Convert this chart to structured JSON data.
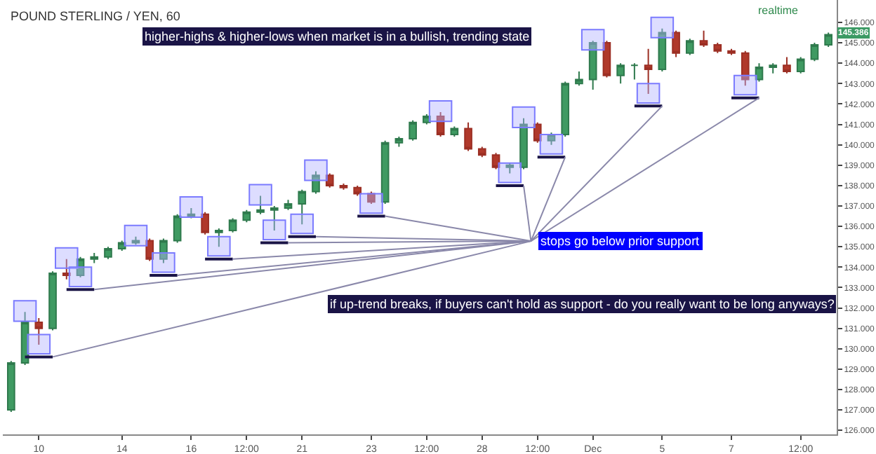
{
  "chart_data": {
    "type": "candlestick",
    "title": "POUND STERLING / YEN, 60",
    "categories": [
      null,
      null,
      "10",
      null,
      null,
      null,
      null,
      null,
      "14",
      null,
      null,
      null,
      null,
      "16",
      null,
      null,
      null,
      "12:00",
      null,
      null,
      null,
      "21",
      null,
      null,
      null,
      null,
      "23",
      null,
      null,
      null,
      "12:00",
      null,
      null,
      null,
      "28",
      null,
      null,
      null,
      "12:00",
      null,
      null,
      null,
      "Dec",
      null,
      null,
      null,
      null,
      "5",
      null,
      null,
      null,
      null,
      "7",
      null,
      null,
      null,
      null,
      "12:00",
      null,
      null
    ],
    "ohlc": [
      [
        127.0,
        129.4,
        126.9,
        129.3
      ],
      [
        129.3,
        131.8,
        129.2,
        131.3
      ],
      [
        131.3,
        131.5,
        130.2,
        131.0
      ],
      [
        131.0,
        133.8,
        130.9,
        133.7
      ],
      [
        133.7,
        134.4,
        133.4,
        133.6
      ],
      [
        133.6,
        134.5,
        133.5,
        134.4
      ],
      [
        134.4,
        134.7,
        134.2,
        134.5
      ],
      [
        134.5,
        135.0,
        134.4,
        134.9
      ],
      [
        134.9,
        135.3,
        134.8,
        135.2
      ],
      [
        135.2,
        135.5,
        135.1,
        135.3
      ],
      [
        135.3,
        135.4,
        134.3,
        134.4
      ],
      [
        134.4,
        135.4,
        134.2,
        135.3
      ],
      [
        135.3,
        136.6,
        135.2,
        136.5
      ],
      [
        136.5,
        136.9,
        136.4,
        136.6
      ],
      [
        136.6,
        136.7,
        135.6,
        135.7
      ],
      [
        135.7,
        135.9,
        135.0,
        135.8
      ],
      [
        135.8,
        136.4,
        135.7,
        136.3
      ],
      [
        136.3,
        136.8,
        136.2,
        136.7
      ],
      [
        136.7,
        137.5,
        136.6,
        136.8
      ],
      [
        136.8,
        137.0,
        135.8,
        136.9
      ],
      [
        136.9,
        137.3,
        136.8,
        137.1
      ],
      [
        137.1,
        137.8,
        136.1,
        137.7
      ],
      [
        137.7,
        138.7,
        137.6,
        138.5
      ],
      [
        138.5,
        138.6,
        137.9,
        138.0
      ],
      [
        138.0,
        138.1,
        137.8,
        137.9
      ],
      [
        137.9,
        138.0,
        137.5,
        137.6
      ],
      [
        137.6,
        137.7,
        137.1,
        137.2
      ],
      [
        137.2,
        140.2,
        137.1,
        140.1
      ],
      [
        140.1,
        140.4,
        139.9,
        140.3
      ],
      [
        140.3,
        141.2,
        140.2,
        141.1
      ],
      [
        141.1,
        141.5,
        141.0,
        141.4
      ],
      [
        141.4,
        141.6,
        140.4,
        140.5
      ],
      [
        140.5,
        140.9,
        140.4,
        140.8
      ],
      [
        140.8,
        141.1,
        139.7,
        139.8
      ],
      [
        139.8,
        139.9,
        139.4,
        139.5
      ],
      [
        139.5,
        139.6,
        138.8,
        138.9
      ],
      [
        138.9,
        139.1,
        138.6,
        139.0
      ],
      [
        138.9,
        141.3,
        138.8,
        141.0
      ],
      [
        141.0,
        141.1,
        140.1,
        140.2
      ],
      [
        140.2,
        140.6,
        140.0,
        140.5
      ],
      [
        140.5,
        143.1,
        140.4,
        143.0
      ],
      [
        143.0,
        143.6,
        142.9,
        143.2
      ],
      [
        143.2,
        145.1,
        142.7,
        145.0
      ],
      [
        145.0,
        145.1,
        143.3,
        143.4
      ],
      [
        143.4,
        144.0,
        143.0,
        143.9
      ],
      [
        143.9,
        144.0,
        143.2,
        143.9
      ],
      [
        143.9,
        144.7,
        142.5,
        143.7
      ],
      [
        143.7,
        145.7,
        143.6,
        145.5
      ],
      [
        145.5,
        145.6,
        144.3,
        144.5
      ],
      [
        144.5,
        145.2,
        144.4,
        145.1
      ],
      [
        145.1,
        145.6,
        144.8,
        144.9
      ],
      [
        144.9,
        145.0,
        144.5,
        144.6
      ],
      [
        144.6,
        144.7,
        144.4,
        144.5
      ],
      [
        144.5,
        144.6,
        142.9,
        143.2
      ],
      [
        143.2,
        144.0,
        143.1,
        143.8
      ],
      [
        143.8,
        144.0,
        143.5,
        143.9
      ],
      [
        143.9,
        144.3,
        143.5,
        143.6
      ],
      [
        143.6,
        144.3,
        143.5,
        144.2
      ],
      [
        144.2,
        145.0,
        144.1,
        144.9
      ],
      [
        144.9,
        145.5,
        144.8,
        145.4
      ]
    ],
    "ylim": [
      125.8,
      147.1
    ],
    "yticks": [
      {
        "value": 126,
        "label": "126.000"
      },
      {
        "value": 127,
        "label": "127.000"
      },
      {
        "value": 128,
        "label": "128.000"
      },
      {
        "value": 129,
        "label": "129.000"
      },
      {
        "value": 130,
        "label": "130.000"
      },
      {
        "value": 131,
        "label": "131.000"
      },
      {
        "value": 132,
        "label": "132.000"
      },
      {
        "value": 133,
        "label": "133.000"
      },
      {
        "value": 134,
        "label": "134.000"
      },
      {
        "value": 135,
        "label": "135.000"
      },
      {
        "value": 136,
        "label": "136.000"
      },
      {
        "value": 137,
        "label": "137.000"
      },
      {
        "value": 138,
        "label": "138.000"
      },
      {
        "value": 139,
        "label": "139.000"
      },
      {
        "value": 140,
        "label": "140.000"
      },
      {
        "value": 141,
        "label": "141.000"
      },
      {
        "value": 142,
        "label": "142.000"
      },
      {
        "value": 143,
        "label": "143.000"
      },
      {
        "value": 144,
        "label": "144.000"
      },
      {
        "value": 145,
        "label": "145.000"
      },
      {
        "value": 146,
        "label": "146.000"
      }
    ],
    "annotations": [
      "higher-highs & higher-lows when market is in a bullish, trending state",
      "stops go below prior support",
      "if up-trend breaks, if buyers can't hold as support - do you really want to be long anyways?",
      "realtime",
      "145.386"
    ]
  }
}
